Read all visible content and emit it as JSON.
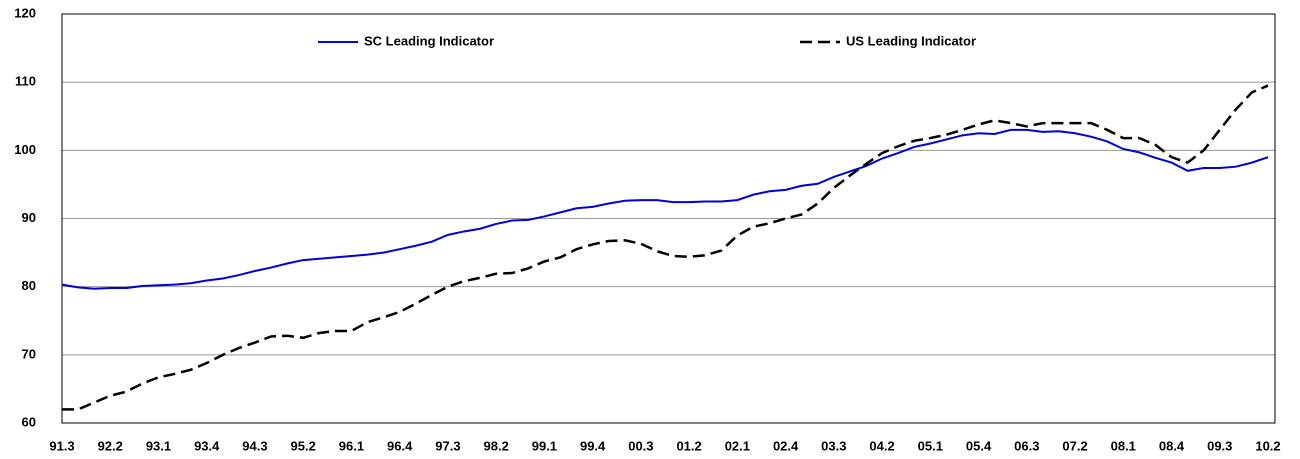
{
  "chart_data": {
    "type": "line",
    "categories": [
      "91.3",
      null,
      null,
      "92.2",
      null,
      null,
      "93.1",
      null,
      null,
      "93.4",
      null,
      null,
      "94.3",
      null,
      null,
      "95.2",
      null,
      null,
      "96.1",
      null,
      null,
      "96.4",
      null,
      null,
      "97.3",
      null,
      null,
      "98.2",
      null,
      null,
      "99.1",
      null,
      null,
      "99.4",
      null,
      null,
      "00.3",
      null,
      null,
      "01.2",
      null,
      null,
      "02.1",
      null,
      null,
      "02.4",
      null,
      null,
      "03.3",
      null,
      null,
      "04.2",
      null,
      null,
      "05.1",
      null,
      null,
      "05.4",
      null,
      null,
      "06.3",
      null,
      null,
      "07.2",
      null,
      null,
      "08.1",
      null,
      null,
      "08.4",
      null,
      null,
      "09.3",
      null,
      null,
      "10.2"
    ],
    "series": [
      {
        "name": "SC Leading Indicator",
        "color": "#0000dd",
        "dash": false,
        "values": [
          80.3,
          79.9,
          79.7,
          79.8,
          79.8,
          80.1,
          80.2,
          80.3,
          80.5,
          80.9,
          81.2,
          81.7,
          82.3,
          82.8,
          83.4,
          83.9,
          84.1,
          84.3,
          84.5,
          84.7,
          85.0,
          85.5,
          86.0,
          86.6,
          87.6,
          88.1,
          88.5,
          89.2,
          89.7,
          89.8,
          90.3,
          90.9,
          91.5,
          91.7,
          92.2,
          92.6,
          92.7,
          92.7,
          92.4,
          92.4,
          92.5,
          92.5,
          92.7,
          93.5,
          94.0,
          94.2,
          94.8,
          95.1,
          96.1,
          96.9,
          97.7,
          98.8,
          99.6,
          100.5,
          101.0,
          101.6,
          102.2,
          102.5,
          102.4,
          103.0,
          103.0,
          102.7,
          102.8,
          102.5,
          102.0,
          101.3,
          100.2,
          99.7,
          98.9,
          98.2,
          97.0,
          97.4,
          97.4,
          97.6,
          98.2,
          99.0
        ]
      },
      {
        "name": "US Leading Indicator",
        "color": "#000000",
        "dash": true,
        "values": [
          62.0,
          62.0,
          63.0,
          64.0,
          64.6,
          65.8,
          66.7,
          67.2,
          67.8,
          68.8,
          70.0,
          71.0,
          71.8,
          72.7,
          72.8,
          72.5,
          73.2,
          73.5,
          73.5,
          74.8,
          75.5,
          76.3,
          77.5,
          78.8,
          80.0,
          80.8,
          81.3,
          81.9,
          82.0,
          82.7,
          83.7,
          84.3,
          85.5,
          86.2,
          86.7,
          86.8,
          86.3,
          85.2,
          84.5,
          84.4,
          84.6,
          85.3,
          87.5,
          88.8,
          89.3,
          90.0,
          90.6,
          92.2,
          94.5,
          96.3,
          98.0,
          99.6,
          100.6,
          101.4,
          101.8,
          102.3,
          103.0,
          103.8,
          104.4,
          104.0,
          103.5,
          104.0,
          104.0,
          104.0,
          104.0,
          103.0,
          101.8,
          101.8,
          100.8,
          99.0,
          98.2,
          100.0,
          103.0,
          106.0,
          108.5,
          109.5
        ]
      }
    ],
    "ylim": [
      60,
      120
    ],
    "yticks": [
      60,
      70,
      80,
      90,
      100,
      110,
      120
    ],
    "grid": true,
    "legend": "top"
  }
}
